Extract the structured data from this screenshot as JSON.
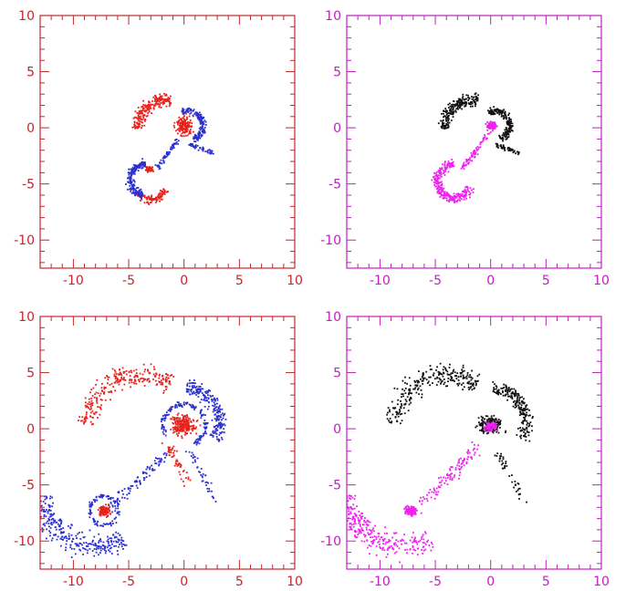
{
  "chart_data": [
    {
      "type": "scatter",
      "panel": "top-left",
      "frame_color": "#c0282d",
      "xlim": [
        -13,
        10
      ],
      "ylim": [
        -12.5,
        10
      ],
      "xticks": [
        "-10",
        "-5",
        "0",
        "5",
        "10"
      ],
      "yticks": [
        "10",
        "5",
        "0",
        "-5",
        "-10"
      ],
      "series": [
        {
          "color": "#e8221c",
          "structures": [
            {
              "kind": "arc",
              "cx": -1.6,
              "cy": -0.1,
              "r": 2.6,
              "t0": 80,
              "t1": 180,
              "w": 0.8,
              "n": 220
            },
            {
              "kind": "blob",
              "x": 0.0,
              "y": 0.2,
              "rx": 1.0,
              "ry": 1.3,
              "n": 160
            },
            {
              "kind": "arc",
              "cx": -3.0,
              "cy": -5.0,
              "r": 1.4,
              "t0": 200,
              "t1": 340,
              "w": 0.5,
              "n": 120
            },
            {
              "kind": "blob",
              "x": -3.2,
              "y": -3.7,
              "rx": 0.5,
              "ry": 0.4,
              "n": 60
            }
          ]
        },
        {
          "color": "#2a2fcf",
          "structures": [
            {
              "kind": "arc",
              "cx": 0.4,
              "cy": 0.2,
              "r": 1.3,
              "t0": -70,
              "t1": 120,
              "w": 0.45,
              "n": 160
            },
            {
              "kind": "line",
              "x0": 0.5,
              "y0": -1.5,
              "x1": 2.5,
              "y1": -2.2,
              "w": 0.25,
              "n": 50
            },
            {
              "kind": "arc",
              "cx": -3.5,
              "cy": -4.6,
              "r": 1.4,
              "t0": 90,
              "t1": 260,
              "w": 0.5,
              "n": 180
            },
            {
              "kind": "line",
              "x0": -2.5,
              "y0": -3.6,
              "x1": -0.5,
              "y1": -1.0,
              "w": 0.35,
              "n": 60
            }
          ]
        }
      ]
    },
    {
      "type": "scatter",
      "panel": "top-right",
      "frame_color": "#c020c0",
      "xlim": [
        -13,
        10
      ],
      "ylim": [
        -12.5,
        10
      ],
      "xticks": [
        "-10",
        "-5",
        "0",
        "5",
        "10"
      ],
      "yticks": [
        "10",
        "5",
        "0",
        "-5",
        "-10"
      ],
      "series": [
        {
          "color": "#111111",
          "structures": [
            {
              "kind": "arc",
              "cx": -1.6,
              "cy": -0.1,
              "r": 2.6,
              "t0": 80,
              "t1": 180,
              "w": 0.8,
              "n": 220
            },
            {
              "kind": "arc",
              "cx": 0.4,
              "cy": 0.2,
              "r": 1.3,
              "t0": -70,
              "t1": 120,
              "w": 0.45,
              "n": 180
            },
            {
              "kind": "line",
              "x0": 0.5,
              "y0": -1.5,
              "x1": 2.5,
              "y1": -2.2,
              "w": 0.25,
              "n": 50
            }
          ]
        },
        {
          "color": "#ee22ee",
          "structures": [
            {
              "kind": "blob",
              "x": 0.1,
              "y": 0.2,
              "rx": 0.6,
              "ry": 0.6,
              "n": 90
            },
            {
              "kind": "arc",
              "cx": -3.3,
              "cy": -4.8,
              "r": 1.5,
              "t0": 90,
              "t1": 340,
              "w": 0.6,
              "n": 280
            },
            {
              "kind": "line",
              "x0": -2.5,
              "y0": -3.6,
              "x1": -0.2,
              "y1": -0.5,
              "w": 0.4,
              "n": 70
            }
          ]
        }
      ]
    },
    {
      "type": "scatter",
      "panel": "bottom-left",
      "frame_color": "#c0282d",
      "xlim": [
        -13,
        10
      ],
      "ylim": [
        -12.5,
        10
      ],
      "xticks": [
        "-10",
        "-5",
        "0",
        "5",
        "10"
      ],
      "yticks": [
        "10",
        "5",
        "0",
        "-5",
        "-10"
      ],
      "series": [
        {
          "color": "#e8221c",
          "structures": [
            {
              "kind": "arc",
              "cx": -4.0,
              "cy": 0.0,
              "r": 4.8,
              "t0": 55,
              "t1": 175,
              "w": 1.4,
              "n": 260
            },
            {
              "kind": "blob",
              "x": 0.0,
              "y": 0.3,
              "rx": 1.6,
              "ry": 1.2,
              "n": 220
            },
            {
              "kind": "blob",
              "x": -7.2,
              "y": -7.3,
              "rx": 0.8,
              "ry": 0.7,
              "n": 110
            },
            {
              "kind": "line",
              "x0": -1.5,
              "y0": -1.5,
              "x1": 0.5,
              "y1": -5.0,
              "w": 0.6,
              "n": 50
            }
          ]
        },
        {
          "color": "#2a2fcf",
          "structures": [
            {
              "kind": "arc",
              "cx": 0.2,
              "cy": 0.6,
              "r": 3.0,
              "t0": -30,
              "t1": 90,
              "w": 0.9,
              "n": 220
            },
            {
              "kind": "arc",
              "cx": 0.0,
              "cy": 0.3,
              "r": 1.9,
              "t0": -60,
              "t1": 210,
              "w": 0.35,
              "n": 140
            },
            {
              "kind": "line",
              "x0": -6.5,
              "y0": -7.0,
              "x1": -1.5,
              "y1": -2.0,
              "w": 0.8,
              "n": 90
            },
            {
              "kind": "arc",
              "cx": -7.2,
              "cy": -7.3,
              "r": 1.3,
              "t0": 0,
              "t1": 360,
              "w": 0.3,
              "n": 100
            },
            {
              "kind": "arc",
              "cx": -8.0,
              "cy": -5.5,
              "r": 5.0,
              "t0": 185,
              "t1": 300,
              "w": 1.6,
              "n": 300
            },
            {
              "kind": "line",
              "x0": 0.5,
              "y0": -2.0,
              "x1": 3.0,
              "y1": -6.5,
              "w": 0.6,
              "n": 40
            }
          ]
        }
      ]
    },
    {
      "type": "scatter",
      "panel": "bottom-right",
      "frame_color": "#c020c0",
      "xlim": [
        -13,
        10
      ],
      "ylim": [
        -12.5,
        10
      ],
      "xticks": [
        "-10",
        "-5",
        "0",
        "5",
        "10"
      ],
      "yticks": [
        "10",
        "5",
        "0",
        "-5",
        "-10"
      ],
      "series": [
        {
          "color": "#111111",
          "structures": [
            {
              "kind": "arc",
              "cx": -4.0,
              "cy": 0.0,
              "r": 4.8,
              "t0": 55,
              "t1": 175,
              "w": 1.4,
              "n": 260
            },
            {
              "kind": "arc",
              "cx": 0.2,
              "cy": 0.6,
              "r": 3.0,
              "t0": -30,
              "t1": 90,
              "w": 0.9,
              "n": 200
            },
            {
              "kind": "blob",
              "x": 0.0,
              "y": 0.3,
              "rx": 1.5,
              "ry": 1.1,
              "n": 200
            },
            {
              "kind": "line",
              "x0": 0.5,
              "y0": -2.0,
              "x1": 3.0,
              "y1": -6.5,
              "w": 0.6,
              "n": 40
            }
          ]
        },
        {
          "color": "#ee22ee",
          "structures": [
            {
              "kind": "blob",
              "x": 0.0,
              "y": 0.2,
              "rx": 0.8,
              "ry": 0.6,
              "n": 90
            },
            {
              "kind": "blob",
              "x": -7.2,
              "y": -7.3,
              "rx": 0.8,
              "ry": 0.7,
              "n": 110
            },
            {
              "kind": "arc",
              "cx": -8.0,
              "cy": -5.5,
              "r": 5.0,
              "t0": 185,
              "t1": 300,
              "w": 1.6,
              "n": 280
            },
            {
              "kind": "line",
              "x0": -6.5,
              "y0": -7.0,
              "x1": -1.0,
              "y1": -1.5,
              "w": 0.9,
              "n": 110
            }
          ]
        }
      ]
    }
  ]
}
